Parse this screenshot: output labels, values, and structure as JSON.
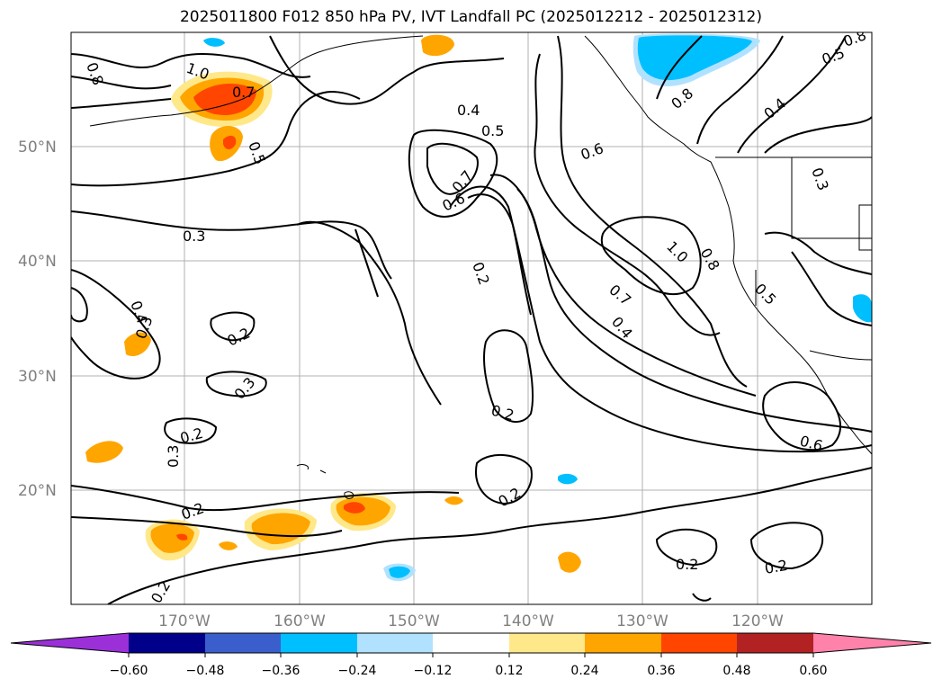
{
  "title": "2025011800 F012 850 hPa PV, IVT Landfall PC (2025012212 - 2025012312)",
  "map": {
    "lat_labels": [
      "50°N",
      "40°N",
      "30°N",
      "20°N"
    ],
    "lon_labels": [
      "170°W",
      "160°W",
      "150°W",
      "140°W",
      "130°W",
      "120°W"
    ],
    "contour_labels": [
      "0.8",
      "1.0",
      "0.7",
      "0.5",
      "0.4",
      "0.5",
      "0.6",
      "0.8",
      "0.4",
      "0.3",
      "0.7",
      "0.6",
      "0.3",
      "0.2",
      "1.0",
      "0.8",
      "0.7",
      "0.5",
      "0.4",
      "0.4",
      "0.3",
      "0.2",
      "0.3",
      "0.2",
      "0.2",
      "0.3",
      "0.2",
      "0.2",
      "0.6",
      "0.2",
      "0.2",
      "0.2",
      "0.5",
      "0.8"
    ]
  },
  "colorbar": {
    "ticks": [
      "−0.60",
      "−0.48",
      "−0.36",
      "−0.24",
      "−0.12",
      "0.12",
      "0.24",
      "0.36",
      "0.48",
      "0.60"
    ],
    "colors": [
      "#9b30d9",
      "#00008b",
      "#3a5fcd",
      "#00bfff",
      "#b0e2ff",
      "#ffffff",
      "#ffe88a",
      "#ffa500",
      "#ff4500",
      "#b22222",
      "#ff82ab"
    ]
  }
}
